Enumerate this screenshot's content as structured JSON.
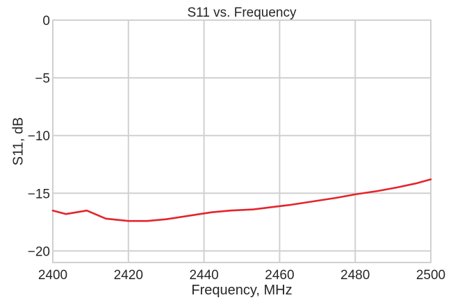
{
  "chart_data": {
    "type": "line",
    "title": "S11 vs. Frequency",
    "xlabel": "Frequency, MHz",
    "ylabel": "S11, dB",
    "xlim": [
      2400,
      2500
    ],
    "ylim": [
      -21,
      0
    ],
    "xticks": [
      2400,
      2420,
      2440,
      2460,
      2480,
      2500
    ],
    "yticks": [
      0,
      -5,
      -10,
      -15,
      -20
    ],
    "xtick_labels": [
      "2400",
      "2420",
      "2440",
      "2460",
      "2480",
      "2500"
    ],
    "ytick_labels": [
      "0",
      "−5",
      "−10",
      "−15",
      "−20"
    ],
    "grid": true,
    "series": [
      {
        "color": "#e3242b",
        "x": [
          2400,
          2403.5,
          2409,
          2414,
          2420,
          2425,
          2430,
          2436,
          2442,
          2447,
          2453,
          2458,
          2463,
          2469,
          2475,
          2480,
          2486,
          2491,
          2496,
          2500
        ],
        "y": [
          -16.5,
          -16.8,
          -16.5,
          -17.2,
          -17.4,
          -17.4,
          -17.25,
          -16.95,
          -16.65,
          -16.5,
          -16.4,
          -16.2,
          -16.0,
          -15.7,
          -15.4,
          -15.1,
          -14.8,
          -14.5,
          -14.15,
          -13.8
        ]
      }
    ]
  }
}
